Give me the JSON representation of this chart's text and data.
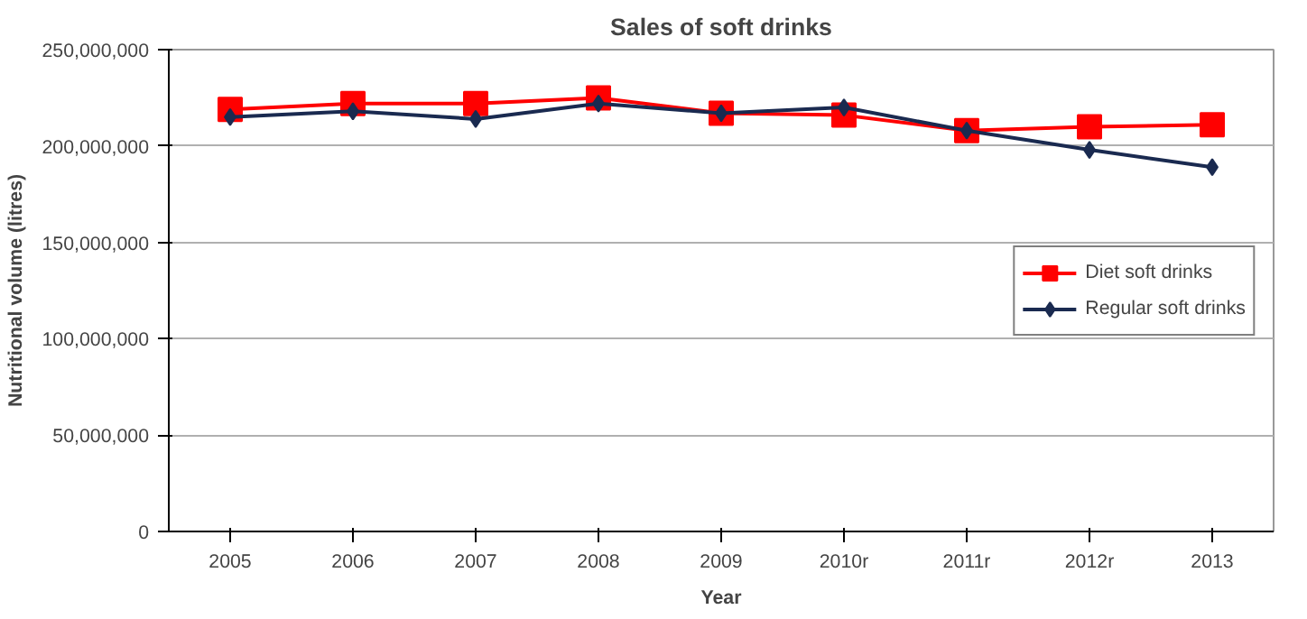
{
  "chart_data": {
    "type": "line",
    "title": "Sales of soft drinks",
    "xlabel": "Year",
    "ylabel": "Nutritional volume (litres)",
    "categories": [
      "2005",
      "2006",
      "2007",
      "2008",
      "2009",
      "2010r",
      "2011r",
      "2012r",
      "2013"
    ],
    "series": [
      {
        "name": "Diet soft drinks",
        "color": "#ff0000",
        "marker": "square",
        "values": [
          219000000,
          222000000,
          222000000,
          225000000,
          217000000,
          216000000,
          208000000,
          210000000,
          211000000
        ]
      },
      {
        "name": "Regular soft drinks",
        "color": "#1a2a50",
        "marker": "diamond",
        "values": [
          215000000,
          218000000,
          214000000,
          222000000,
          217000000,
          220000000,
          208000000,
          198000000,
          189000000
        ]
      }
    ],
    "ylim": [
      0,
      250000000
    ],
    "yticks": [
      {
        "value": 0,
        "label": "0"
      },
      {
        "value": 50000000,
        "label": "50,000,000"
      },
      {
        "value": 100000000,
        "label": "100,000,000"
      },
      {
        "value": 150000000,
        "label": "150,000,000"
      },
      {
        "value": 200000000,
        "label": "200,000,000"
      },
      {
        "value": 250000000,
        "label": "250,000,000"
      }
    ],
    "grid": "y",
    "legend": "right",
    "line_style": "solid"
  }
}
